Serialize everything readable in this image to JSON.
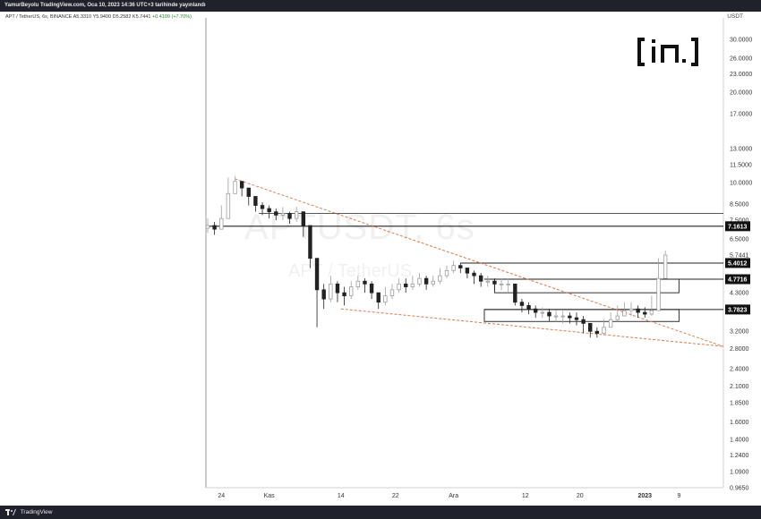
{
  "header": {
    "publish_line": "YamurBeyolu TradingView.com, Oca 10, 2023 14:36 UTC+3 tarihinde yayınlandı"
  },
  "legend": {
    "symbol": "APT / TetherUS, 6s, BINANCE",
    "open": "A5.3310",
    "high": "Y5.9400",
    "low": "D5.2582",
    "close": "K5.7441",
    "change": "+0.4109 (+7.70%)"
  },
  "currency_label": "USDT",
  "watermark": {
    "line1": "APTUSDT, 6s",
    "line2": "APT / TetherUS"
  },
  "footer": {
    "brand": "TradingView"
  },
  "colors": {
    "up": "#9e9e9e",
    "down": "#222222",
    "trendline": "#e0784b",
    "zone_border": "#333333",
    "topbar": "#20222b"
  },
  "chart_data": {
    "type": "candlestick",
    "title": "APTUSDT, 6s",
    "price_axis": {
      "scale": "log",
      "ticks": [
        "30.0000",
        "26.0000",
        "23.0000",
        "20.0000",
        "17.0000",
        "13.0000",
        "11.5000",
        "10.0000",
        "8.5000",
        "7.5000",
        "6.5000",
        "5.7441",
        "5.4012",
        "4.7716",
        "4.3000",
        "3.7823",
        "3.2000",
        "2.8000",
        "2.4000",
        "2.1000",
        "1.8500",
        "1.6000",
        "1.4000",
        "1.2400",
        "1.0900",
        "0.9650"
      ],
      "range": [
        0.965,
        32.0
      ]
    },
    "time_axis": {
      "ticks": [
        "24",
        "Kas",
        "14",
        "22",
        "Ara",
        "12",
        "20",
        "2023",
        "9"
      ]
    },
    "price_labels": [
      {
        "value": "7.1613",
        "style": "highlight"
      },
      {
        "value": "5.7441",
        "style": "plain"
      },
      {
        "value": "23:58",
        "style": "countdown"
      },
      {
        "value": "5.4012",
        "style": "highlight"
      },
      {
        "value": "4.7716",
        "style": "highlight"
      },
      {
        "value": "3.7823",
        "style": "highlight"
      }
    ],
    "horizontal_levels": [
      7.1613,
      7.9,
      5.4012,
      4.7716,
      3.7823
    ],
    "zones": [
      {
        "top": 4.7716,
        "bottom": 4.3,
        "label": "resistance-zone"
      },
      {
        "top": 3.7823,
        "bottom": 3.45,
        "label": "support-zone"
      }
    ],
    "trendlines": [
      {
        "from": {
          "day": 23.5,
          "price": 10.3
        },
        "to": {
          "day": 95.0,
          "price": 2.85
        },
        "style": "dashed"
      },
      {
        "from": {
          "day": 39.0,
          "price": 3.8
        },
        "to": {
          "day": 95.0,
          "price": 2.85
        },
        "style": "dashed"
      }
    ],
    "series": [
      {
        "name": "APT / TetherUS",
        "day": [
          19.5,
          20.5,
          21.5,
          22.5,
          23.5,
          24.5,
          25.5,
          26.5,
          27.5,
          28.5,
          29.5,
          30.5,
          31.5,
          32.5,
          33.5,
          34.5,
          35.5,
          36.5,
          37.5,
          38.5,
          39.5,
          40.5,
          41.5,
          42.5,
          43.5,
          44.5,
          45.5,
          46.5,
          47.5,
          48.5,
          49.5,
          50.5,
          51.5,
          52.5,
          53.5,
          54.5,
          55.5,
          56.5,
          57.5,
          58.5,
          59.5,
          60.5,
          61.5,
          62.5,
          63.5,
          64.5,
          65.5,
          66.5,
          67.5,
          68.5,
          69.5,
          70.5,
          71.5,
          72.5,
          73.5,
          74.5,
          75.5,
          76.5,
          77.5,
          78.5,
          79.5,
          80.5,
          81.5,
          82.5,
          83.5,
          84.5,
          85.5,
          86.5
        ],
        "close": [
          7.2,
          7.0,
          7.6,
          9.2,
          10.1,
          9.6,
          9.0,
          8.4,
          8.2,
          8.0,
          7.8,
          7.9,
          7.6,
          8.0,
          7.2,
          5.6,
          4.4,
          4.1,
          4.6,
          4.3,
          4.2,
          4.5,
          4.7,
          4.6,
          4.3,
          4.0,
          4.2,
          4.4,
          4.6,
          4.5,
          4.6,
          4.8,
          4.6,
          4.7,
          4.9,
          5.1,
          5.3,
          5.2,
          5.0,
          4.9,
          4.7,
          4.7,
          4.6,
          4.6,
          4.6,
          4.0,
          3.9,
          3.8,
          3.7,
          3.7,
          3.6,
          3.6,
          3.6,
          3.55,
          3.5,
          3.4,
          3.2,
          3.15,
          3.3,
          3.5,
          3.6,
          3.75,
          3.8,
          3.7,
          3.65,
          3.75,
          4.8,
          5.74
        ],
        "high": [
          7.6,
          7.4,
          8.4,
          10.4,
          10.5,
          10.0,
          9.4,
          8.8,
          8.6,
          8.4,
          8.2,
          8.3,
          8.0,
          8.3,
          8.0,
          6.6,
          5.4,
          4.6,
          4.9,
          4.7,
          4.5,
          4.7,
          4.9,
          4.8,
          4.7,
          4.3,
          4.5,
          4.6,
          4.8,
          4.8,
          4.9,
          5.0,
          4.9,
          4.9,
          5.2,
          5.3,
          5.5,
          5.4,
          5.2,
          5.1,
          5.0,
          4.9,
          4.8,
          4.8,
          4.8,
          4.5,
          4.1,
          4.0,
          3.9,
          3.85,
          3.8,
          3.75,
          3.75,
          3.7,
          3.7,
          3.6,
          3.4,
          3.3,
          3.5,
          3.7,
          3.9,
          4.0,
          4.0,
          3.9,
          3.85,
          4.2,
          5.6,
          5.94
        ],
        "low": [
          6.8,
          6.7,
          7.0,
          7.6,
          9.3,
          9.0,
          8.4,
          8.0,
          7.8,
          7.6,
          7.5,
          7.5,
          7.3,
          7.4,
          6.6,
          5.2,
          3.3,
          3.8,
          4.0,
          4.0,
          3.9,
          4.1,
          4.4,
          4.3,
          4.1,
          3.8,
          3.9,
          4.1,
          4.3,
          4.3,
          4.4,
          4.5,
          4.4,
          4.5,
          4.6,
          4.8,
          5.0,
          5.0,
          4.8,
          4.6,
          4.5,
          4.5,
          4.4,
          4.4,
          4.3,
          3.9,
          3.7,
          3.65,
          3.55,
          3.55,
          3.45,
          3.45,
          3.4,
          3.4,
          3.35,
          3.15,
          3.05,
          3.05,
          3.1,
          3.3,
          3.45,
          3.6,
          3.6,
          3.55,
          3.55,
          3.6,
          3.9,
          5.26
        ]
      }
    ]
  }
}
